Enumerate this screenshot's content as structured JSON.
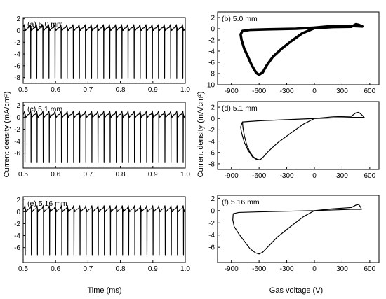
{
  "figure": {
    "ylabel": "Current density (mA/cm²)",
    "xlabel_left": "Time (ms)",
    "xlabel_right": "Gas voltage (V)"
  },
  "chart_data": [
    {
      "id": "a",
      "type": "line",
      "label": "(a) 5.0 mm",
      "x_label": "Time (ms)",
      "xlim": [
        0.5,
        1.0
      ],
      "ylim": [
        -9,
        2.2
      ],
      "xticks": [
        "0.5",
        "0.6",
        "0.7",
        "0.8",
        "0.9",
        "1.0"
      ],
      "yticks": [
        "2",
        "0",
        "-2",
        "-4",
        "-6",
        "-8"
      ],
      "waveform": {
        "period_ms": 0.01877,
        "first_spike_ms": 0.5045,
        "baseline": 0.5,
        "peak": 1.0,
        "min": -8.2
      }
    },
    {
      "id": "b",
      "type": "line",
      "label": "(b) 5.0 mm",
      "x_label": "Gas voltage (V)",
      "xlim": [
        -1050,
        700
      ],
      "ylim": [
        -10,
        3
      ],
      "xticks": [
        "-900",
        "-600",
        "-300",
        "0",
        "300",
        "600"
      ],
      "yticks": [
        "2",
        "0",
        "-2",
        "-4",
        "-6",
        "-8",
        "-10"
      ],
      "loop": [
        [
          520,
          0.4
        ],
        [
          400,
          0.5
        ],
        [
          200,
          0.5
        ],
        [
          0,
          0.2
        ],
        [
          -200,
          0
        ],
        [
          -500,
          -0.1
        ],
        [
          -700,
          -0.2
        ],
        [
          -780,
          -0.4
        ],
        [
          -800,
          -1.0
        ],
        [
          -790,
          -2
        ],
        [
          -760,
          -3.6
        ],
        [
          -720,
          -5.0
        ],
        [
          -680,
          -6.5
        ],
        [
          -630,
          -7.9
        ],
        [
          -600,
          -8.2
        ],
        [
          -560,
          -7.8
        ],
        [
          -520,
          -6.6
        ],
        [
          -450,
          -5.0
        ],
        [
          -350,
          -3.5
        ],
        [
          -250,
          -2.2
        ],
        [
          -130,
          -0.8
        ],
        [
          0,
          0.1
        ],
        [
          200,
          0.3
        ],
        [
          400,
          0.35
        ],
        [
          450,
          0.8
        ],
        [
          480,
          0.7
        ],
        [
          520,
          0.4
        ]
      ],
      "band": 0.45
    },
    {
      "id": "c",
      "type": "line",
      "label": "(c) 5.1 mm",
      "x_label": "Time (ms)",
      "xlim": [
        0.5,
        1.0
      ],
      "ylim": [
        -8.5,
        2.5
      ],
      "xticks": [
        "0.5",
        "0.6",
        "0.7",
        "0.8",
        "0.9",
        "1.0"
      ],
      "yticks": [
        "2",
        "0",
        "-2",
        "-4",
        "-6"
      ],
      "waveform": {
        "period_ms": 0.01877,
        "first_spike_ms": 0.5055,
        "baseline": 0.5,
        "peak": 1.0,
        "min": -7.6
      }
    },
    {
      "id": "d",
      "type": "line",
      "label": "(d) 5.1 mm",
      "x_label": "Gas voltage (V)",
      "xlim": [
        -1050,
        700
      ],
      "ylim": [
        -9,
        3
      ],
      "xticks": [
        "-900",
        "-600",
        "-300",
        "0",
        "300",
        "600"
      ],
      "yticks": [
        "2",
        "0",
        "-2",
        "-4",
        "-6",
        "-8"
      ],
      "loop": [
        [
          540,
          0.2
        ],
        [
          400,
          0.2
        ],
        [
          200,
          0.1
        ],
        [
          0,
          0
        ],
        [
          -300,
          -0.2
        ],
        [
          -600,
          -0.4
        ],
        [
          -780,
          -0.6
        ],
        [
          -800,
          -1.5
        ],
        [
          -790,
          -2.5
        ],
        [
          -760,
          -4.2
        ],
        [
          -720,
          -5.6
        ],
        [
          -670,
          -6.8
        ],
        [
          -620,
          -7.3
        ],
        [
          -590,
          -7.3
        ],
        [
          -560,
          -6.9
        ],
        [
          -500,
          -5.8
        ],
        [
          -400,
          -4.3
        ],
        [
          -250,
          -2.5
        ],
        [
          -120,
          -1.0
        ],
        [
          0,
          0
        ],
        [
          200,
          0.3
        ],
        [
          400,
          0.4
        ],
        [
          450,
          1.0
        ],
        [
          480,
          1.1
        ],
        [
          510,
          0.7
        ],
        [
          540,
          0.2
        ]
      ],
      "loop2": [
        [
          -780,
          -0.6
        ],
        [
          -775,
          -1.6
        ],
        [
          -760,
          -3.0
        ],
        [
          -735,
          -4.6
        ],
        [
          -700,
          -5.9
        ],
        [
          -660,
          -6.8
        ],
        [
          -620,
          -7.2
        ],
        [
          -590,
          -7.3
        ]
      ]
    },
    {
      "id": "e",
      "type": "line",
      "label": "(e) 5.16 mm",
      "x_label": "Time (ms)",
      "xlim": [
        0.5,
        1.0
      ],
      "ylim": [
        -8.5,
        2.5
      ],
      "xticks": [
        "0.5",
        "0.6",
        "0.7",
        "0.8",
        "0.9",
        "1.0"
      ],
      "yticks": [
        "2",
        "0",
        "-2",
        "-4",
        "-6"
      ],
      "waveform": {
        "period_ms": 0.01877,
        "first_spike_ms": 0.5065,
        "baseline": 0.5,
        "peak": 1.0,
        "min": -7.2
      }
    },
    {
      "id": "f",
      "type": "line",
      "label": "(f) 5.16 mm",
      "x_label": "Gas voltage (V)",
      "xlim": [
        -1050,
        700
      ],
      "ylim": [
        -8.5,
        2.5
      ],
      "xticks": [
        "-900",
        "-600",
        "-300",
        "0",
        "300",
        "600"
      ],
      "yticks": [
        "2",
        "0",
        "-2",
        "-4",
        "-6"
      ],
      "loop": [
        [
          510,
          0.2
        ],
        [
          400,
          0.2
        ],
        [
          200,
          0.1
        ],
        [
          0,
          0
        ],
        [
          -300,
          -0.1
        ],
        [
          -600,
          -0.2
        ],
        [
          -820,
          -0.3
        ],
        [
          -880,
          -0.5
        ],
        [
          -885,
          -1.5
        ],
        [
          -870,
          -2.6
        ],
        [
          -820,
          -3.8
        ],
        [
          -760,
          -5.0
        ],
        [
          -700,
          -6.2
        ],
        [
          -640,
          -6.9
        ],
        [
          -600,
          -7.1
        ],
        [
          -560,
          -6.8
        ],
        [
          -490,
          -5.7
        ],
        [
          -400,
          -4.3
        ],
        [
          -250,
          -2.5
        ],
        [
          -120,
          -1.0
        ],
        [
          0,
          0
        ],
        [
          200,
          0.3
        ],
        [
          400,
          0.5
        ],
        [
          450,
          0.9
        ],
        [
          480,
          1.0
        ],
        [
          500,
          0.6
        ],
        [
          510,
          0.2
        ]
      ]
    }
  ]
}
